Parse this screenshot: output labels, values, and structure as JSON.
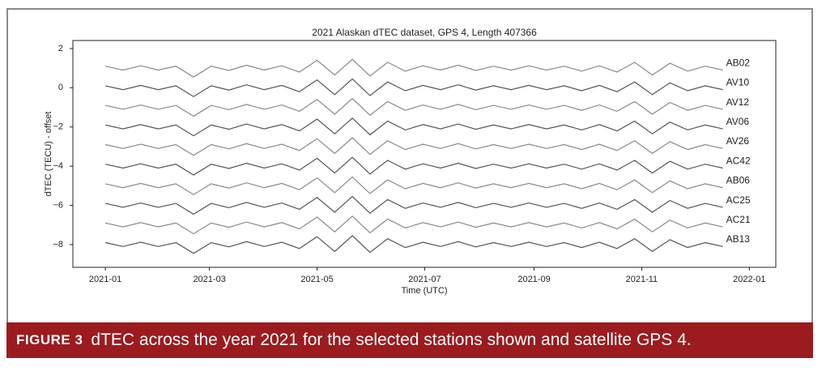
{
  "chart_data": {
    "type": "line",
    "title": "2021 Alaskan dTEC dataset, GPS 4, Length 407366",
    "x_label": "Time (UTC)",
    "y_label": "dTEC (TECU) - offset",
    "x": [
      0,
      10,
      20,
      30,
      40,
      50,
      60,
      70,
      80,
      90,
      100,
      110,
      120,
      130,
      140,
      150,
      160,
      170,
      180,
      190,
      200,
      210,
      220,
      230,
      240,
      250,
      260,
      270,
      280,
      290,
      300,
      310,
      320,
      330,
      340,
      350
    ],
    "xlim": [
      -18.4,
      380
    ],
    "xticks": [
      {
        "value": 0,
        "label": "2021-01"
      },
      {
        "value": 59,
        "label": "2021-03"
      },
      {
        "value": 120,
        "label": "2021-05"
      },
      {
        "value": 181,
        "label": "2021-07"
      },
      {
        "value": 243,
        "label": "2021-09"
      },
      {
        "value": 304,
        "label": "2021-11"
      },
      {
        "value": 365,
        "label": "2022-01"
      }
    ],
    "ylim": [
      -9.16,
      2.41
    ],
    "yticks": [
      2,
      0,
      {
        "value": -2,
        "label": "−2"
      },
      {
        "value": -4,
        "label": "−4"
      },
      {
        "value": -6,
        "label": "−6"
      },
      {
        "value": -8,
        "label": "−8"
      }
    ],
    "grid": false,
    "series": [
      {
        "name": "AB02",
        "color": "#8a8a8a",
        "values": [
          1.1,
          0.9,
          1.12,
          0.9,
          1.1,
          0.55,
          1.1,
          0.88,
          1.15,
          0.9,
          1.12,
          0.8,
          1.4,
          0.65,
          1.45,
          0.6,
          1.3,
          0.85,
          1.12,
          0.9,
          1.15,
          0.88,
          1.1,
          0.9,
          1.12,
          0.9,
          1.1,
          0.85,
          1.12,
          0.8,
          1.3,
          0.65,
          1.25,
          0.85,
          1.1,
          0.9
        ]
      },
      {
        "name": "AV10",
        "color": "#555555",
        "values": [
          0.1,
          -0.1,
          0.12,
          -0.1,
          0.1,
          -0.45,
          0.1,
          -0.12,
          0.15,
          -0.1,
          0.12,
          -0.2,
          0.4,
          -0.35,
          0.45,
          -0.4,
          0.3,
          -0.15,
          0.12,
          -0.1,
          0.15,
          -0.12,
          0.1,
          -0.1,
          0.12,
          -0.1,
          0.1,
          -0.15,
          0.12,
          -0.2,
          0.3,
          -0.35,
          0.25,
          -0.15,
          0.1,
          -0.1
        ]
      },
      {
        "name": "AV12",
        "color": "#8a8a8a",
        "values": [
          -0.9,
          -1.1,
          -0.88,
          -1.1,
          -0.9,
          -1.45,
          -0.9,
          -1.12,
          -0.85,
          -1.1,
          -0.88,
          -1.2,
          -0.6,
          -1.35,
          -0.55,
          -1.4,
          -0.7,
          -1.15,
          -0.88,
          -1.1,
          -0.85,
          -1.12,
          -0.9,
          -1.1,
          -0.88,
          -1.1,
          -0.9,
          -1.15,
          -0.88,
          -1.2,
          -0.7,
          -1.35,
          -0.75,
          -1.15,
          -0.9,
          -1.1
        ]
      },
      {
        "name": "AV06",
        "color": "#555555",
        "values": [
          -1.9,
          -2.1,
          -1.88,
          -2.1,
          -1.9,
          -2.45,
          -1.9,
          -2.12,
          -1.85,
          -2.1,
          -1.88,
          -2.2,
          -1.6,
          -2.35,
          -1.55,
          -2.4,
          -1.7,
          -2.15,
          -1.88,
          -2.1,
          -1.85,
          -2.12,
          -1.9,
          -2.1,
          -1.88,
          -2.1,
          -1.9,
          -2.15,
          -1.88,
          -2.2,
          -1.7,
          -2.35,
          -1.75,
          -2.15,
          -1.9,
          -2.1
        ]
      },
      {
        "name": "AV26",
        "color": "#8a8a8a",
        "values": [
          -2.9,
          -3.1,
          -2.88,
          -3.1,
          -2.9,
          -3.45,
          -2.9,
          -3.12,
          -2.85,
          -3.1,
          -2.88,
          -3.2,
          -2.6,
          -3.35,
          -2.55,
          -3.4,
          -2.7,
          -3.15,
          -2.88,
          -3.1,
          -2.85,
          -3.12,
          -2.9,
          -3.1,
          -2.88,
          -3.1,
          -2.9,
          -3.15,
          -2.88,
          -3.2,
          -2.7,
          -3.35,
          -2.75,
          -3.15,
          -2.9,
          -3.1
        ]
      },
      {
        "name": "AC42",
        "color": "#555555",
        "values": [
          -3.9,
          -4.1,
          -3.88,
          -4.1,
          -3.9,
          -4.45,
          -3.9,
          -4.12,
          -3.85,
          -4.1,
          -3.88,
          -4.2,
          -3.6,
          -4.35,
          -3.55,
          -4.4,
          -3.7,
          -4.15,
          -3.88,
          -4.1,
          -3.85,
          -4.12,
          -3.9,
          -4.1,
          -3.88,
          -4.1,
          -3.9,
          -4.15,
          -3.88,
          -4.2,
          -3.7,
          -4.35,
          -3.75,
          -4.15,
          -3.9,
          -4.1
        ]
      },
      {
        "name": "AB06",
        "color": "#8a8a8a",
        "values": [
          -4.9,
          -5.1,
          -4.88,
          -5.1,
          -4.9,
          -5.45,
          -4.9,
          -5.12,
          -4.85,
          -5.1,
          -4.88,
          -5.2,
          -4.6,
          -5.35,
          -4.55,
          -5.4,
          -4.7,
          -5.15,
          -4.88,
          -5.1,
          -4.85,
          -5.12,
          -4.9,
          -5.1,
          -4.88,
          -5.1,
          -4.9,
          -5.15,
          -4.88,
          -5.2,
          -4.7,
          -5.35,
          -4.75,
          -5.15,
          -4.9,
          -5.1
        ]
      },
      {
        "name": "AC25",
        "color": "#555555",
        "values": [
          -5.9,
          -6.1,
          -5.88,
          -6.1,
          -5.9,
          -6.45,
          -5.9,
          -6.12,
          -5.85,
          -6.1,
          -5.88,
          -6.2,
          -5.6,
          -6.35,
          -5.55,
          -6.4,
          -5.7,
          -6.15,
          -5.88,
          -6.1,
          -5.85,
          -6.12,
          -5.9,
          -6.1,
          -5.88,
          -6.1,
          -5.9,
          -6.15,
          -5.88,
          -6.2,
          -5.7,
          -6.35,
          -5.75,
          -6.15,
          -5.9,
          -6.1
        ]
      },
      {
        "name": "AC21",
        "color": "#8a8a8a",
        "values": [
          -6.9,
          -7.1,
          -6.88,
          -7.1,
          -6.9,
          -7.45,
          -6.9,
          -7.12,
          -6.85,
          -7.1,
          -6.88,
          -7.2,
          -6.6,
          -7.35,
          -6.55,
          -7.4,
          -6.7,
          -7.15,
          -6.88,
          -7.1,
          -6.85,
          -7.12,
          -6.9,
          -7.1,
          -6.88,
          -7.1,
          -6.9,
          -7.15,
          -6.88,
          -7.2,
          -6.7,
          -7.35,
          -6.75,
          -7.15,
          -6.9,
          -7.1
        ]
      },
      {
        "name": "AB13",
        "color": "#555555",
        "values": [
          -7.9,
          -8.1,
          -7.88,
          -8.1,
          -7.9,
          -8.45,
          -7.9,
          -8.12,
          -7.85,
          -8.1,
          -7.88,
          -8.2,
          -7.6,
          -8.35,
          -7.55,
          -8.4,
          -7.7,
          -8.15,
          -7.88,
          -8.1,
          -7.85,
          -8.12,
          -7.9,
          -8.1,
          -7.88,
          -8.1,
          -7.9,
          -8.15,
          -7.88,
          -8.2,
          -7.7,
          -8.35,
          -7.75,
          -8.15,
          -7.9,
          -8.1
        ]
      }
    ]
  },
  "figure": {
    "label": "FIGURE 3",
    "caption": "dTEC across the year 2021 for the selected stations shown and satellite GPS 4."
  }
}
